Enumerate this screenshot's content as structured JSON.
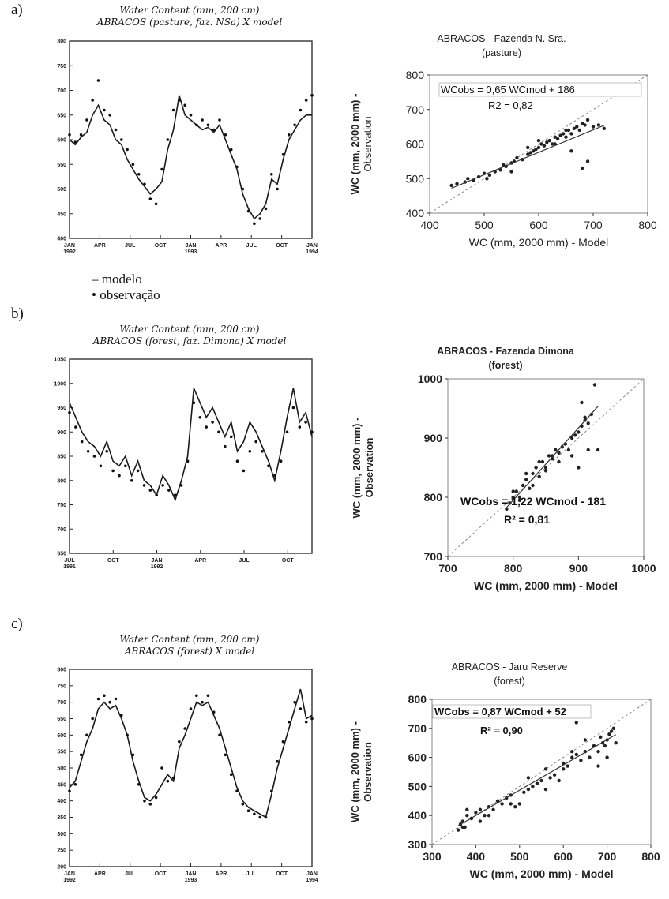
{
  "panel_labels": [
    "a)",
    "b)",
    "c)"
  ],
  "legend": {
    "model_label": "– modelo",
    "obs_label": "• observação"
  },
  "chart_data": [
    {
      "id": "a_ts",
      "type": "line",
      "title_line1": "Water Content (mm, 200 cm)",
      "title_line2": "ABRACOS (pasture, faz. NSa) X model",
      "xticks": [
        "JAN\n1992",
        "APR",
        "JUL",
        "OCT",
        "JAN\n1993",
        "APR",
        "JUL",
        "OCT",
        "JAN\n1994"
      ],
      "yticks": [
        "400",
        "450",
        "500",
        "550",
        "600",
        "650",
        "700",
        "750",
        "800"
      ],
      "ylim": [
        400,
        800
      ],
      "x": [
        0,
        3,
        6,
        9,
        12,
        15,
        18,
        21,
        24,
        27,
        30,
        33,
        36,
        39,
        42,
        45,
        48,
        51,
        54,
        57,
        60,
        63,
        66,
        69,
        72,
        75,
        78,
        81,
        84,
        87,
        90,
        93,
        96,
        99,
        102,
        105,
        108,
        111,
        114,
        117,
        120,
        123,
        126
      ],
      "series": [
        {
          "name": "modelo",
          "values": [
            600,
            590,
            605,
            615,
            650,
            670,
            640,
            630,
            600,
            590,
            560,
            540,
            520,
            505,
            490,
            500,
            515,
            580,
            620,
            690,
            650,
            640,
            630,
            620,
            625,
            615,
            630,
            600,
            570,
            540,
            490,
            460,
            440,
            450,
            470,
            520,
            510,
            560,
            600,
            620,
            640,
            650,
            650
          ]
        },
        {
          "name": "observação",
          "values": [
            610,
            595,
            610,
            640,
            680,
            720,
            660,
            650,
            620,
            600,
            580,
            550,
            530,
            510,
            480,
            470,
            540,
            600,
            660,
            680,
            670,
            650,
            630,
            640,
            630,
            620,
            640,
            610,
            580,
            545,
            500,
            455,
            430,
            440,
            460,
            530,
            500,
            570,
            610,
            630,
            660,
            680,
            690
          ]
        }
      ]
    },
    {
      "id": "a_sc",
      "type": "scatter",
      "title_line1": "ABRACOS - Fazenda N. Sra.",
      "title_line2": "(pasture)",
      "xlabel": "WC (mm, 2000 mm) - Model",
      "ylabel_line1": "WC (mm, 2000 mm) -",
      "ylabel_line2": "Observation",
      "equation": "WCobs = 0,65 WCmod + 186",
      "r2": "R2 = 0,82",
      "xticks": [
        "400",
        "500",
        "600",
        "700",
        "800"
      ],
      "yticks": [
        "400",
        "500",
        "600",
        "700",
        "800"
      ],
      "xlim": [
        400,
        800
      ],
      "ylim": [
        400,
        800
      ],
      "fit": {
        "slope": 0.65,
        "intercept": 186,
        "x_range": [
          440,
          720
        ]
      },
      "x": [
        440,
        450,
        465,
        470,
        480,
        490,
        500,
        505,
        510,
        520,
        530,
        535,
        540,
        550,
        555,
        560,
        570,
        580,
        585,
        590,
        595,
        600,
        605,
        610,
        615,
        620,
        625,
        630,
        635,
        640,
        645,
        650,
        655,
        660,
        665,
        670,
        675,
        680,
        685,
        690,
        700,
        710,
        720,
        600,
        650,
        680,
        630,
        660,
        690,
        580,
        550
      ],
      "y": [
        480,
        485,
        490,
        500,
        495,
        505,
        515,
        500,
        510,
        520,
        525,
        540,
        535,
        545,
        550,
        560,
        555,
        570,
        575,
        580,
        585,
        590,
        600,
        595,
        605,
        610,
        600,
        620,
        615,
        625,
        630,
        620,
        640,
        630,
        645,
        650,
        640,
        660,
        655,
        670,
        650,
        655,
        645,
        610,
        640,
        530,
        600,
        580,
        550,
        590,
        520
      ]
    },
    {
      "id": "b_ts",
      "type": "line",
      "title_line1": "Water Content (mm, 200 cm)",
      "title_line2": "ABRACOS (forest, faz. Dimona) X model",
      "xticks": [
        "JUL\n1991",
        "OCT",
        "JAN\n1992",
        "APR",
        "JUL",
        "OCT"
      ],
      "yticks": [
        "650",
        "700",
        "750",
        "800",
        "850",
        "900",
        "950",
        "1000",
        "1050"
      ],
      "ylim": [
        650,
        1050
      ],
      "x": [
        0,
        3,
        6,
        9,
        12,
        15,
        18,
        21,
        24,
        27,
        30,
        33,
        36,
        39,
        42,
        45,
        48,
        51,
        54,
        57,
        60,
        63,
        66,
        69,
        72,
        75,
        78,
        81,
        84,
        87,
        90,
        93,
        96,
        99,
        102,
        105,
        108,
        111,
        114,
        117
      ],
      "series": [
        {
          "name": "modelo",
          "values": [
            960,
            930,
            900,
            880,
            870,
            850,
            880,
            840,
            830,
            850,
            810,
            840,
            800,
            790,
            770,
            810,
            790,
            760,
            800,
            850,
            990,
            960,
            930,
            950,
            920,
            890,
            920,
            860,
            880,
            920,
            900,
            870,
            840,
            800,
            860,
            930,
            990,
            920,
            940,
            890
          ]
        },
        {
          "name": "observação",
          "values": [
            940,
            910,
            880,
            860,
            850,
            830,
            860,
            820,
            810,
            830,
            800,
            820,
            790,
            780,
            770,
            790,
            780,
            770,
            790,
            840,
            960,
            930,
            910,
            920,
            900,
            870,
            890,
            840,
            820,
            860,
            880,
            860,
            830,
            810,
            840,
            900,
            950,
            910,
            920,
            900
          ]
        }
      ]
    },
    {
      "id": "b_sc",
      "type": "scatter",
      "title_line1": "ABRACOS - Fazenda Dimona",
      "title_line2": "(forest)",
      "xlabel": "WC (mm, 2000 mm) - Model",
      "ylabel_line1": "WC (mm, 2000 mm) -",
      "ylabel_line2": "Observation",
      "equation": "WCobs = 1,22 WCmod - 181",
      "r2": "R² = 0,81",
      "xticks": [
        "700",
        "800",
        "900",
        "1000"
      ],
      "yticks": [
        "700",
        "800",
        "900",
        "1000"
      ],
      "xlim": [
        700,
        1000
      ],
      "ylim": [
        700,
        1000
      ],
      "fit": {
        "slope": 1.22,
        "intercept": -181,
        "x_range": [
          790,
          930
        ]
      },
      "x": [
        790,
        795,
        800,
        805,
        810,
        815,
        820,
        825,
        830,
        835,
        840,
        845,
        850,
        855,
        860,
        865,
        870,
        875,
        880,
        885,
        890,
        895,
        900,
        905,
        910,
        915,
        920,
        810,
        830,
        850,
        870,
        890,
        910,
        925,
        930,
        900,
        880,
        860,
        840,
        820,
        800,
        915,
        905
      ],
      "y": [
        780,
        790,
        800,
        810,
        795,
        820,
        830,
        815,
        840,
        850,
        835,
        860,
        850,
        870,
        865,
        880,
        875,
        885,
        890,
        880,
        900,
        905,
        910,
        920,
        930,
        925,
        940,
        800,
        820,
        845,
        860,
        870,
        935,
        990,
        880,
        850,
        890,
        870,
        860,
        840,
        810,
        880,
        960
      ]
    },
    {
      "id": "c_ts",
      "type": "line",
      "title_line1": "Water Content (mm, 200 cm)",
      "title_line2": "ABRACOS (forest) X model",
      "xticks": [
        "JAN\n1992",
        "APR",
        "JUL",
        "OCT",
        "JAN\n1993",
        "APR",
        "JUL",
        "OCT",
        "JAN\n1994"
      ],
      "yticks": [
        "200",
        "250",
        "300",
        "350",
        "400",
        "450",
        "500",
        "550",
        "600",
        "650",
        "700",
        "750",
        "800"
      ],
      "ylim": [
        200,
        800
      ],
      "x": [
        0,
        3,
        6,
        9,
        12,
        15,
        18,
        21,
        24,
        27,
        30,
        33,
        36,
        39,
        42,
        45,
        48,
        51,
        54,
        57,
        60,
        63,
        66,
        69,
        72,
        75,
        78,
        81,
        84,
        87,
        90,
        93,
        96,
        99,
        102,
        105,
        108,
        111,
        114,
        117,
        120,
        123,
        126
      ],
      "series": [
        {
          "name": "modelo",
          "values": [
            440,
            460,
            520,
            580,
            620,
            680,
            700,
            680,
            690,
            650,
            600,
            520,
            460,
            410,
            400,
            420,
            450,
            480,
            460,
            560,
            600,
            650,
            700,
            690,
            700,
            660,
            620,
            560,
            500,
            440,
            400,
            380,
            370,
            360,
            350,
            420,
            500,
            560,
            620,
            680,
            740,
            650,
            660
          ]
        },
        {
          "name": "observação",
          "values": [
            430,
            450,
            540,
            600,
            650,
            710,
            720,
            700,
            710,
            660,
            600,
            540,
            450,
            400,
            390,
            410,
            500,
            460,
            470,
            580,
            620,
            680,
            720,
            700,
            720,
            670,
            600,
            540,
            480,
            430,
            390,
            370,
            360,
            350,
            350,
            430,
            520,
            580,
            640,
            700,
            680,
            640,
            650
          ]
        }
      ]
    },
    {
      "id": "c_sc",
      "type": "scatter",
      "title_line1": "ABRACOS - Jaru Reserve",
      "title_line2": "(forest)",
      "xlabel": "WC (mm, 2000 mm) - Model",
      "ylabel_line1": "WC (mm, 2000 mm) -",
      "ylabel_line2": "Observation",
      "equation": "WCobs = 0,87 WCmod + 52",
      "r2": "R² = 0,90",
      "xticks": [
        "300",
        "400",
        "500",
        "600",
        "700",
        "800"
      ],
      "yticks": [
        "300",
        "400",
        "500",
        "600",
        "700",
        "800"
      ],
      "xlim": [
        300,
        800
      ],
      "ylim": [
        300,
        800
      ],
      "fit": {
        "slope": 0.87,
        "intercept": 52,
        "x_range": [
          360,
          720
        ]
      },
      "x": [
        360,
        365,
        370,
        375,
        380,
        390,
        400,
        410,
        420,
        430,
        440,
        450,
        460,
        470,
        480,
        490,
        500,
        510,
        520,
        530,
        540,
        550,
        560,
        570,
        580,
        590,
        600,
        610,
        620,
        630,
        640,
        650,
        660,
        670,
        680,
        690,
        700,
        710,
        720,
        715,
        705,
        695,
        685,
        630,
        600,
        560,
        520,
        480,
        450,
        430,
        410,
        390,
        370,
        380,
        620,
        650,
        680,
        700
      ],
      "y": [
        350,
        370,
        380,
        360,
        400,
        390,
        410,
        420,
        400,
        430,
        420,
        450,
        440,
        460,
        470,
        430,
        440,
        480,
        490,
        500,
        510,
        520,
        490,
        530,
        540,
        520,
        560,
        570,
        600,
        610,
        590,
        620,
        600,
        640,
        620,
        650,
        660,
        690,
        650,
        700,
        680,
        640,
        670,
        720,
        580,
        560,
        530,
        440,
        450,
        400,
        380,
        390,
        360,
        420,
        620,
        660,
        570,
        600
      ]
    }
  ]
}
